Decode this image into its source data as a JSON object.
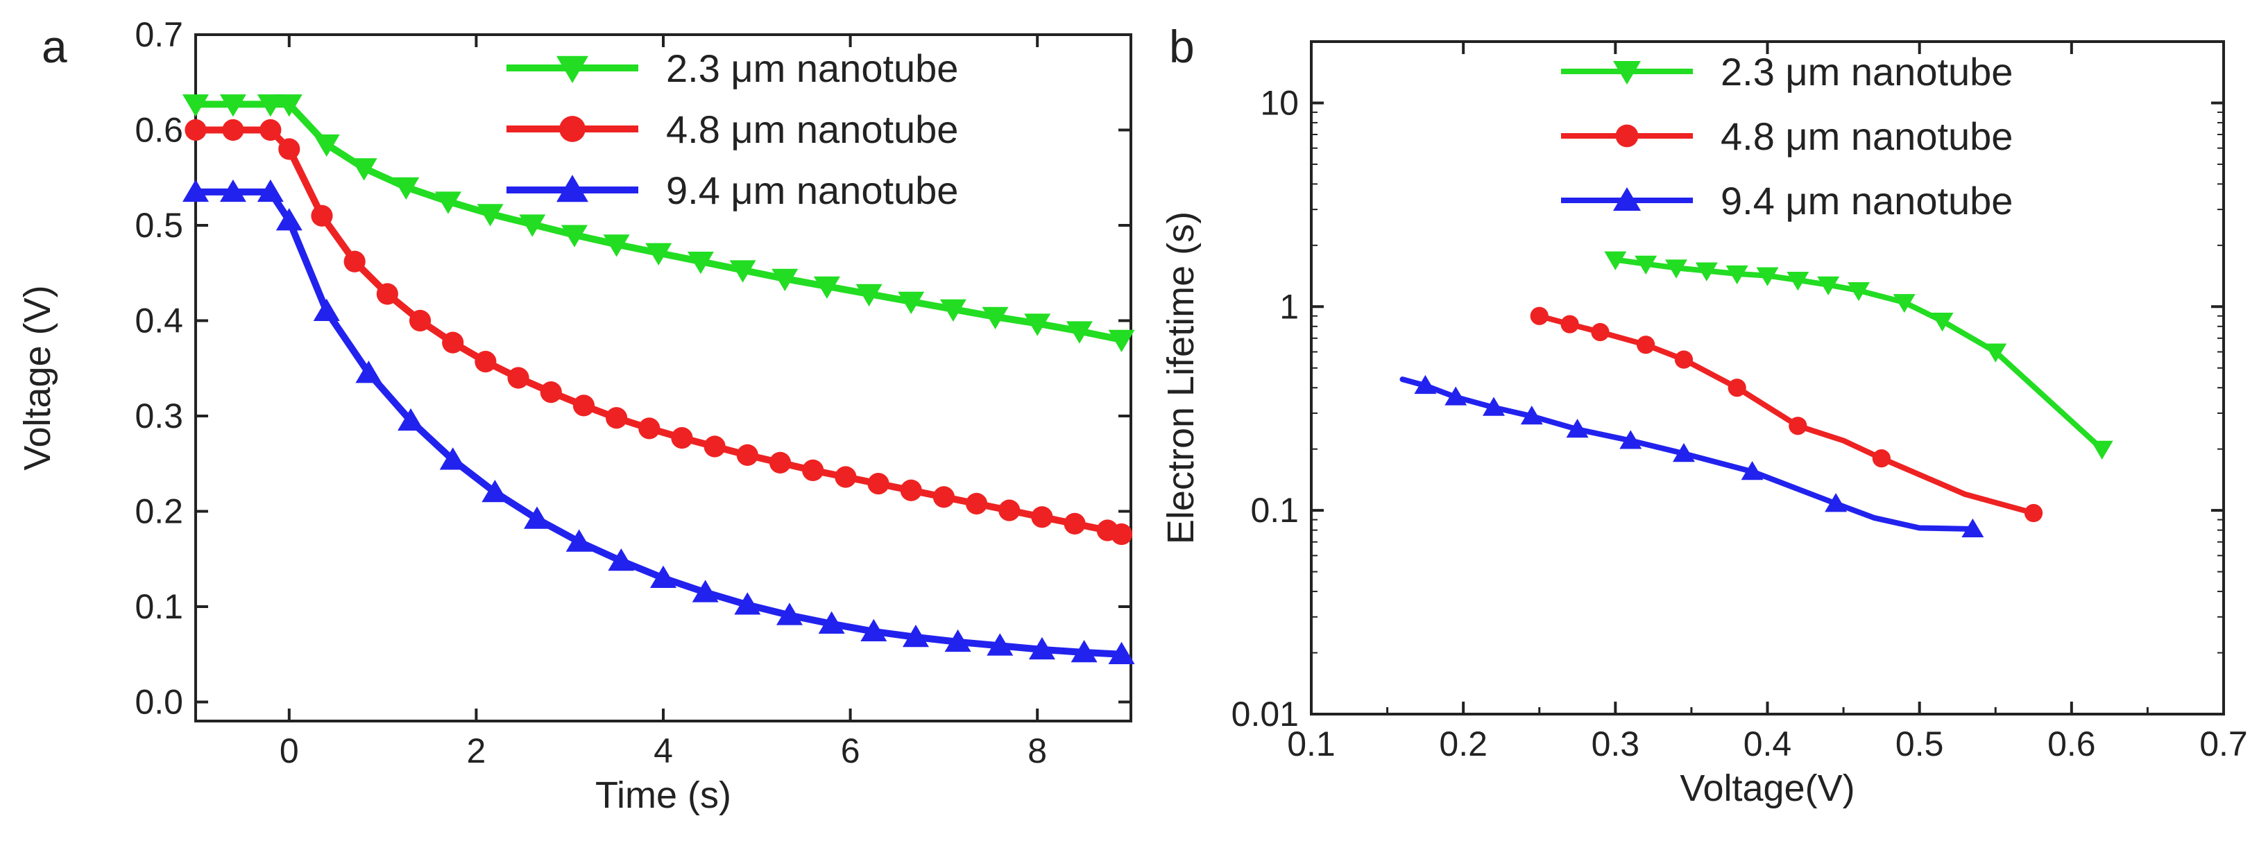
{
  "chart_data": [
    {
      "panel": "a",
      "type": "line",
      "title": "",
      "xlabel": "Time (s)",
      "ylabel": "Voltage (V)",
      "xlim": [
        -1,
        9
      ],
      "ylim": [
        -0.02,
        0.7
      ],
      "xticks": [
        0,
        2,
        4,
        6,
        8
      ],
      "yticks": [
        0.0,
        0.1,
        0.2,
        0.3,
        0.4,
        0.5,
        0.6,
        0.7
      ],
      "xtick_labels": [
        "0",
        "2",
        "4",
        "6",
        "8"
      ],
      "ytick_labels": [
        "0.0",
        "0.1",
        "0.2",
        "0.3",
        "0.4",
        "0.5",
        "0.6",
        "0.7"
      ],
      "legend_position": "top-right",
      "series": [
        {
          "name": "2.3 μm nanotube",
          "color": "#22dd22",
          "marker": "triangle-down",
          "x": [
            -1.0,
            -0.6,
            -0.2,
            0.0,
            0.4,
            0.8,
            1.25,
            1.7,
            2.15,
            2.6,
            3.05,
            3.5,
            3.95,
            4.4,
            4.85,
            5.3,
            5.75,
            6.2,
            6.65,
            7.1,
            7.55,
            8.0,
            8.45,
            8.9
          ],
          "y": [
            0.627,
            0.627,
            0.627,
            0.627,
            0.585,
            0.56,
            0.54,
            0.525,
            0.512,
            0.501,
            0.49,
            0.48,
            0.471,
            0.462,
            0.453,
            0.444,
            0.436,
            0.428,
            0.42,
            0.412,
            0.404,
            0.397,
            0.389,
            0.38
          ]
        },
        {
          "name": "4.8 μm nanotube",
          "color": "#ee2222",
          "marker": "circle",
          "x": [
            -1.0,
            -0.6,
            -0.2,
            0.0,
            0.35,
            0.7,
            1.05,
            1.4,
            1.75,
            2.1,
            2.45,
            2.8,
            3.15,
            3.5,
            3.85,
            4.2,
            4.55,
            4.9,
            5.25,
            5.6,
            5.95,
            6.3,
            6.65,
            7.0,
            7.35,
            7.7,
            8.05,
            8.4,
            8.75,
            8.9
          ],
          "y": [
            0.6,
            0.6,
            0.6,
            0.58,
            0.51,
            0.462,
            0.428,
            0.4,
            0.377,
            0.357,
            0.34,
            0.325,
            0.311,
            0.298,
            0.287,
            0.277,
            0.268,
            0.259,
            0.251,
            0.243,
            0.236,
            0.229,
            0.222,
            0.215,
            0.208,
            0.201,
            0.194,
            0.187,
            0.18,
            0.176
          ]
        },
        {
          "name": "9.4 μm nanotube",
          "color": "#2222ee",
          "marker": "triangle-up",
          "x": [
            -1.0,
            -0.6,
            -0.2,
            0.0,
            0.4,
            0.85,
            1.3,
            1.75,
            2.2,
            2.65,
            3.1,
            3.55,
            4.0,
            4.45,
            4.9,
            5.35,
            5.8,
            6.25,
            6.7,
            7.15,
            7.6,
            8.05,
            8.5,
            8.9
          ],
          "y": [
            0.535,
            0.535,
            0.535,
            0.505,
            0.41,
            0.345,
            0.295,
            0.254,
            0.22,
            0.192,
            0.168,
            0.148,
            0.13,
            0.115,
            0.102,
            0.091,
            0.082,
            0.074,
            0.068,
            0.063,
            0.059,
            0.055,
            0.052,
            0.05
          ]
        }
      ]
    },
    {
      "panel": "b",
      "type": "line",
      "title": "",
      "xlabel": "Voltage(V)",
      "ylabel": "Electron Lifetime (s)",
      "xlim": [
        0.1,
        0.7
      ],
      "ylim": [
        0.01,
        20
      ],
      "yscale": "log",
      "xticks": [
        0.1,
        0.2,
        0.3,
        0.4,
        0.5,
        0.6,
        0.7
      ],
      "yticks": [
        0.01,
        0.1,
        1,
        10
      ],
      "xtick_labels": [
        "0.1",
        "0.2",
        "0.3",
        "0.4",
        "0.5",
        "0.6",
        "0.7"
      ],
      "ytick_labels": [
        "0.01",
        "0.1",
        "1",
        "10"
      ],
      "legend_position": "top-right",
      "series": [
        {
          "name": "2.3 μm nanotube",
          "color": "#22dd22",
          "marker": "triangle-down",
          "x": [
            0.3,
            0.32,
            0.34,
            0.36,
            0.38,
            0.4,
            0.42,
            0.44,
            0.46,
            0.49,
            0.515,
            0.55,
            0.62
          ],
          "y": [
            1.7,
            1.62,
            1.55,
            1.5,
            1.45,
            1.42,
            1.35,
            1.28,
            1.2,
            1.05,
            0.85,
            0.6,
            0.2
          ],
          "markers_at": [
            0.3,
            0.32,
            0.34,
            0.36,
            0.38,
            0.4,
            0.42,
            0.44,
            0.46,
            0.49,
            0.515,
            0.55,
            0.62
          ]
        },
        {
          "name": "4.8 μm nanotube",
          "color": "#ee2222",
          "marker": "circle",
          "x": [
            0.25,
            0.27,
            0.29,
            0.32,
            0.345,
            0.38,
            0.42,
            0.45,
            0.475,
            0.53,
            0.575
          ],
          "y": [
            0.9,
            0.82,
            0.75,
            0.65,
            0.55,
            0.4,
            0.26,
            0.22,
            0.18,
            0.12,
            0.097
          ],
          "markers_at": [
            0.25,
            0.27,
            0.29,
            0.32,
            0.345,
            0.38,
            0.42,
            0.475,
            0.575
          ]
        },
        {
          "name": "9.4 μm nanotube",
          "color": "#2222ee",
          "marker": "triangle-up",
          "x": [
            0.16,
            0.175,
            0.195,
            0.22,
            0.245,
            0.275,
            0.31,
            0.345,
            0.39,
            0.445,
            0.47,
            0.5,
            0.535
          ],
          "y": [
            0.44,
            0.41,
            0.36,
            0.32,
            0.29,
            0.25,
            0.22,
            0.19,
            0.155,
            0.108,
            0.092,
            0.082,
            0.081
          ],
          "markers_at": [
            0.175,
            0.195,
            0.22,
            0.245,
            0.275,
            0.31,
            0.345,
            0.39,
            0.445,
            0.535
          ]
        }
      ]
    }
  ]
}
